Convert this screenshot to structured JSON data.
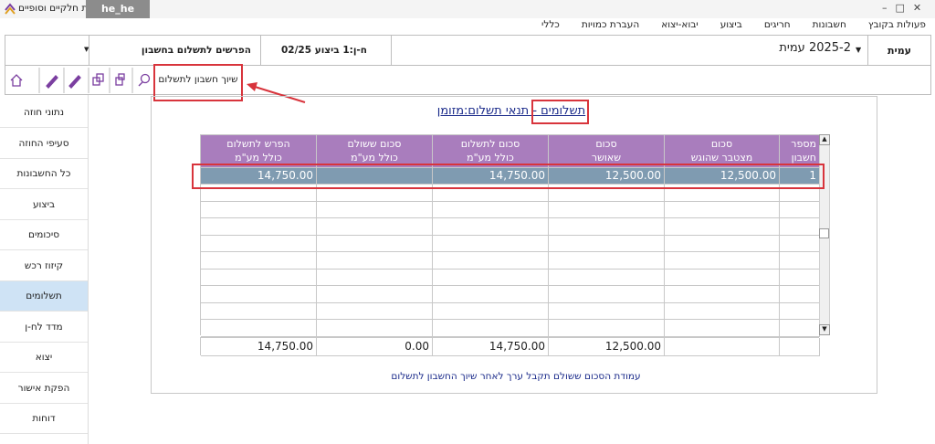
{
  "window": {
    "title": "ת חלקיים וסופיים",
    "tab": "he_he"
  },
  "menu": [
    "פעולות בקובץ",
    "חשבונות",
    "חריגים",
    "ביצוע",
    "יבוא-יצוא",
    "העברת כמויות",
    "כללי"
  ],
  "toolbar": {
    "user": "עמית",
    "period": "2025-2 עמית",
    "invoice": "ח-ן:1 ביצוע 02/25",
    "view": "הפרשים לתשלום בחשבון",
    "assign_button": "שיוך חשבון לתשלום"
  },
  "sidebar": [
    "נתוני חוזה",
    "סעיפי החוזה",
    "כל החשבונות",
    "ביצוע",
    "סיכומים",
    "קיזוז רכש",
    "תשלומים",
    "מדד לח-ן",
    "יצוא",
    "הפקת אישור",
    "דוחות"
  ],
  "panel": {
    "heading": "תשלומים",
    "heading_rest": " - תנאי תשלום:מזומן",
    "table": {
      "columns": [
        "מספר\nחשבון",
        "סכום\nמצטבר שהוגש",
        "סכום\nשאושר",
        "סכום לתשלום\nכולל מע\"מ",
        "סכום ששולם\nכולל מע\"מ",
        "הפרש לתשלום\nכולל מע\"מ"
      ],
      "rows": [
        [
          "1",
          "12,500.00",
          "12,500.00",
          "14,750.00",
          null,
          "14,750.00"
        ]
      ],
      "totals": [
        null,
        null,
        "12,500.00",
        "14,750.00",
        "0.00",
        "14,750.00"
      ]
    },
    "note": "עמודת הסכום ששולם תקבל ערך לאחר שיוך החשבון לתשלום"
  }
}
